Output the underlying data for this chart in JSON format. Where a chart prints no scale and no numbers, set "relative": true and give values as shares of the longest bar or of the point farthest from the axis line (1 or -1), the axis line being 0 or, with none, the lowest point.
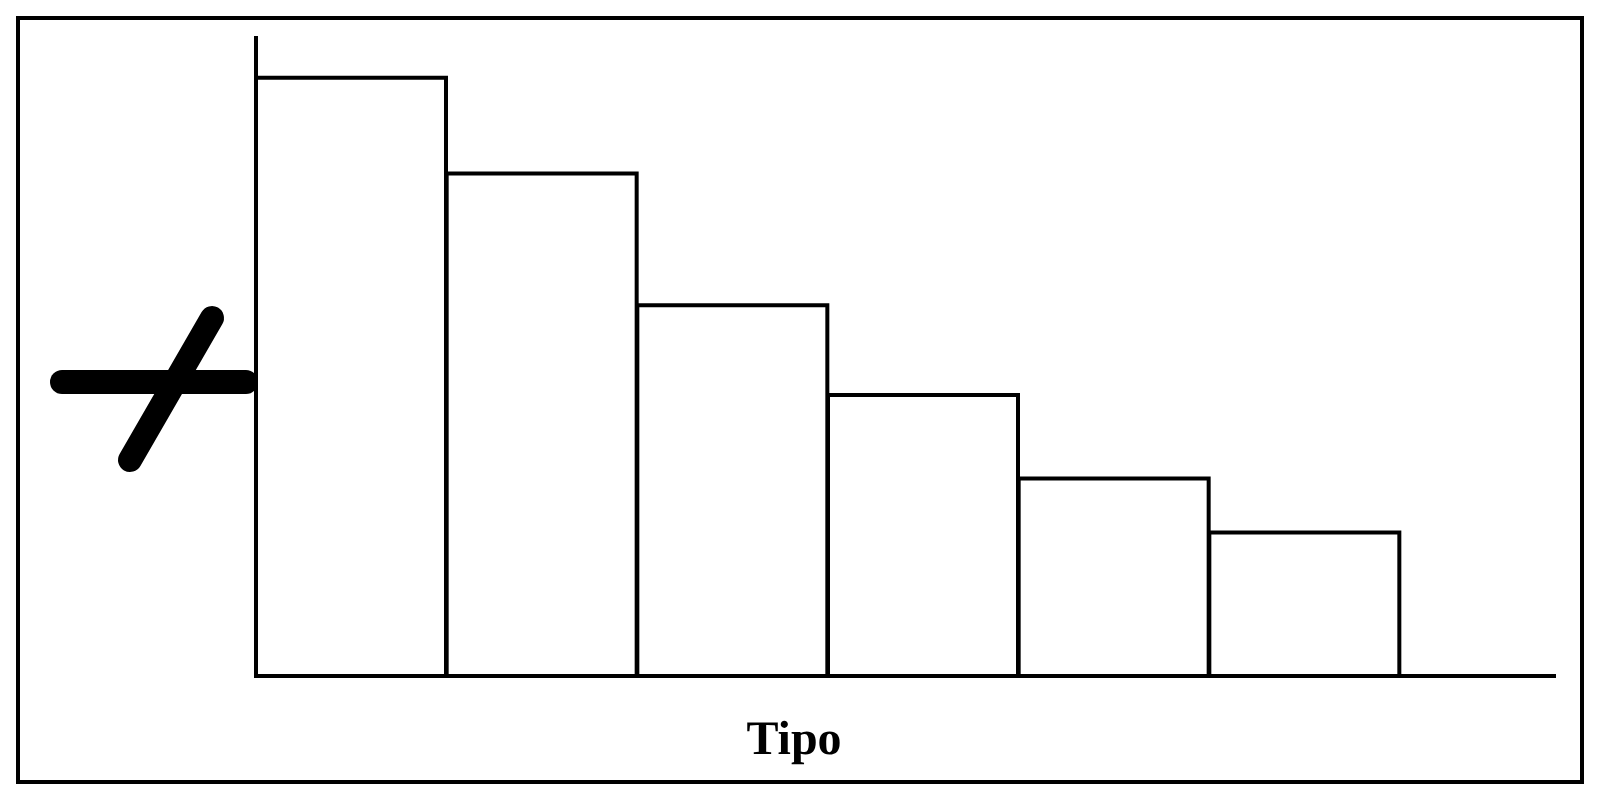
{
  "chart_data": {
    "type": "bar",
    "xlabel": "Tipo",
    "categories": [
      null,
      null,
      null,
      null,
      null,
      null
    ],
    "relative": true,
    "values": [
      1,
      0.84,
      0.62,
      0.47,
      0.33,
      0.24
    ],
    "color": "#ffffff",
    "grid": false,
    "legend": false
  }
}
